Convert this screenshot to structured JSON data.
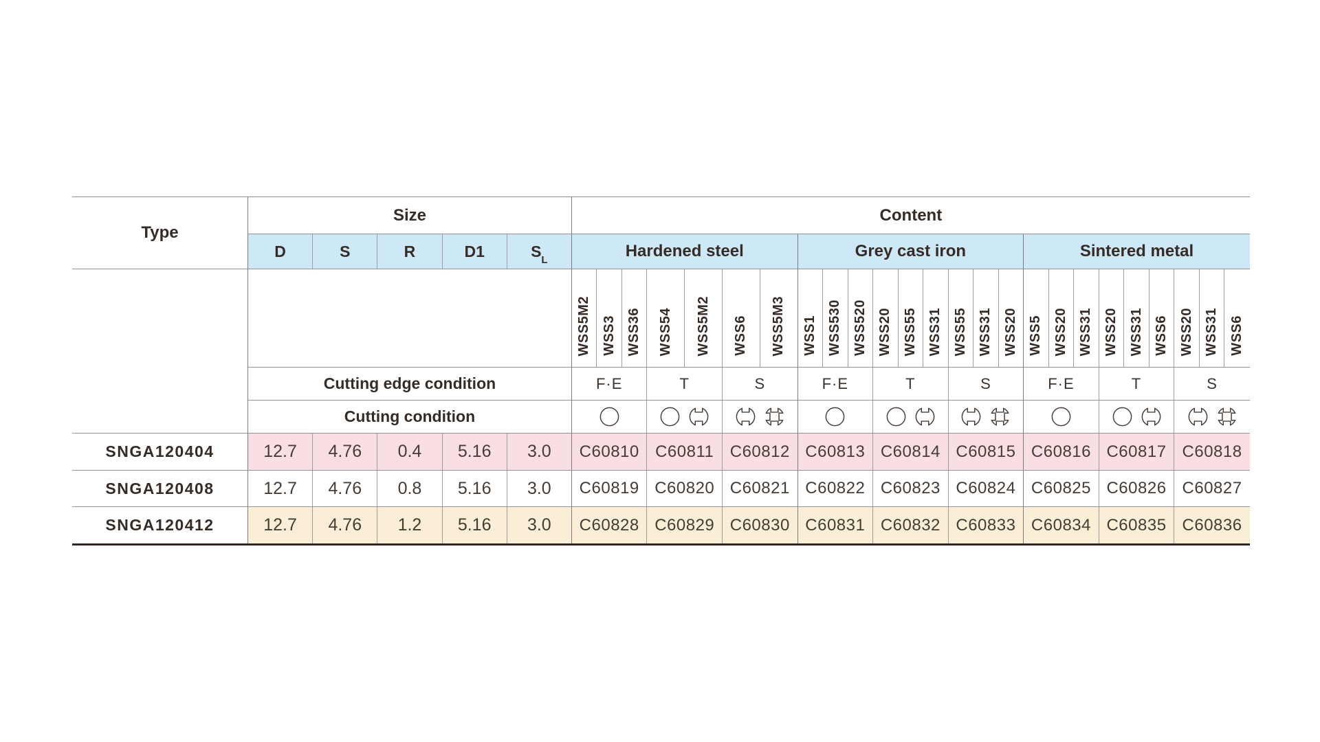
{
  "table": {
    "corner_header": "Type",
    "groups": {
      "size_label": "Size",
      "content_label": "Content"
    },
    "size_columns": [
      {
        "main": "D"
      },
      {
        "main": "S"
      },
      {
        "main": "R"
      },
      {
        "main": "D1"
      },
      {
        "main": "S",
        "sub": "L"
      }
    ],
    "row_headers": {
      "edge": "Cutting edge condition",
      "cutting": "Cutting condition"
    },
    "materials": [
      {
        "name": "Hardened steel",
        "subgroups": [
          {
            "edge_condition": "F·E",
            "cutting_symbols": [
              "continuous"
            ],
            "grades": [
              "WSS5M2",
              "WSS3",
              "WSS36"
            ]
          },
          {
            "edge_condition": "T",
            "cutting_symbols": [
              "continuous",
              "interrupted-2"
            ],
            "grades": [
              "WSS54",
              "WSS5M2"
            ]
          },
          {
            "edge_condition": "S",
            "cutting_symbols": [
              "interrupted-2",
              "interrupted-4"
            ],
            "grades": [
              "WSS6",
              "WSS5M3"
            ]
          }
        ]
      },
      {
        "name": "Grey cast iron",
        "subgroups": [
          {
            "edge_condition": "F·E",
            "cutting_symbols": [
              "continuous"
            ],
            "grades": [
              "WSS1",
              "WSS530",
              "WSS520"
            ]
          },
          {
            "edge_condition": "T",
            "cutting_symbols": [
              "continuous",
              "interrupted-2"
            ],
            "grades": [
              "WSS20",
              "WSS55",
              "WSS31"
            ]
          },
          {
            "edge_condition": "S",
            "cutting_symbols": [
              "interrupted-2",
              "interrupted-4"
            ],
            "grades": [
              "WSS55",
              "WSS31",
              "WSS20"
            ]
          }
        ]
      },
      {
        "name": "Sintered metal",
        "subgroups": [
          {
            "edge_condition": "F·E",
            "cutting_symbols": [
              "continuous"
            ],
            "grades": [
              "WSS5",
              "WSS20",
              "WSS31"
            ]
          },
          {
            "edge_condition": "T",
            "cutting_symbols": [
              "continuous",
              "interrupted-2"
            ],
            "grades": [
              "WSS20",
              "WSS31",
              "WSS6"
            ]
          },
          {
            "edge_condition": "S",
            "cutting_symbols": [
              "interrupted-2",
              "interrupted-4"
            ],
            "grades": [
              "WSS20",
              "WSS31",
              "WSS6"
            ]
          }
        ]
      }
    ],
    "rows": [
      {
        "type": "SNGA120404",
        "size_values": [
          "12.7",
          "4.76",
          "0.4",
          "5.16",
          "3.0"
        ],
        "part_numbers": [
          "C60810",
          "C60811",
          "C60812",
          "C60813",
          "C60814",
          "C60815",
          "C60816",
          "C60817",
          "C60818"
        ],
        "highlight": "pink"
      },
      {
        "type": "SNGA120408",
        "size_values": [
          "12.7",
          "4.76",
          "0.8",
          "5.16",
          "3.0"
        ],
        "part_numbers": [
          "C60819",
          "C60820",
          "C60821",
          "C60822",
          "C60823",
          "C60824",
          "C60825",
          "C60826",
          "C60827"
        ],
        "highlight": "none"
      },
      {
        "type": "SNGA120412",
        "size_values": [
          "12.7",
          "4.76",
          "1.2",
          "5.16",
          "3.0"
        ],
        "part_numbers": [
          "C60828",
          "C60829",
          "C60830",
          "C60831",
          "C60832",
          "C60833",
          "C60834",
          "C60835",
          "C60836"
        ],
        "highlight": "cream"
      }
    ],
    "colors": {
      "header_blue": "#cde8f6",
      "row_pink": "#f9dfe3",
      "row_cream": "#fbeed6",
      "border_gray": "#9e9e9e",
      "heavy_line": "#2f2621",
      "text_dark": "#362b25",
      "symbol_stroke": "#4a3f38"
    }
  }
}
